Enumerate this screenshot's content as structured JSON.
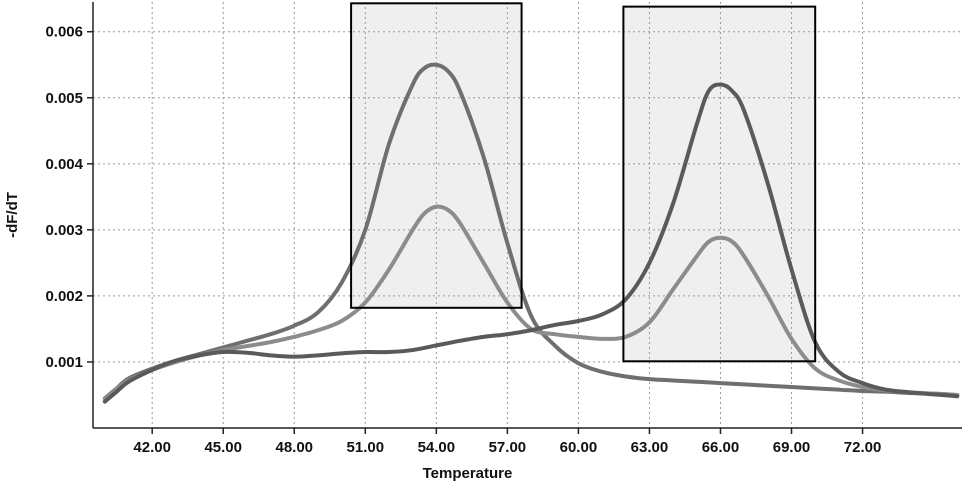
{
  "chart_data": {
    "type": "line",
    "title": "",
    "xlabel": "Temperature",
    "ylabel": "-dF/dT",
    "xlim": [
      39.5,
      76.2
    ],
    "ylim": [
      0.0,
      0.00645
    ],
    "x_ticks": [
      42,
      45,
      48,
      51,
      54,
      57,
      60,
      63,
      66,
      69,
      72
    ],
    "x_tick_labels": [
      "42.00",
      "45.00",
      "48.00",
      "51.00",
      "54.00",
      "57.00",
      "60.00",
      "63.00",
      "66.00",
      "69.00",
      "72.00"
    ],
    "y_ticks": [
      0.001,
      0.002,
      0.003,
      0.004,
      0.005,
      0.006
    ],
    "y_tick_labels": [
      "0.001",
      "0.002",
      "0.003",
      "0.004",
      "0.005",
      "0.006"
    ],
    "grid": true,
    "legend": "none",
    "series": [
      {
        "color": "#6f6f6f",
        "x": [
          40.0,
          40.5,
          41.0,
          42.0,
          43.0,
          44.0,
          45.0,
          46.0,
          47.0,
          48.0,
          49.0,
          50.0,
          51.0,
          52.0,
          53.0,
          53.5,
          54.0,
          54.5,
          55.0,
          56.0,
          57.0,
          58.0,
          59.0,
          60.0,
          61.0,
          62.0,
          63.0,
          64.0,
          65.0,
          66.0,
          67.0,
          68.0,
          69.0,
          70.0,
          71.0,
          72.0,
          73.0,
          74.0,
          75.0,
          76.0
        ],
        "y": [
          0.00045,
          0.0006,
          0.00075,
          0.0009,
          0.00102,
          0.00112,
          0.00122,
          0.00132,
          0.00142,
          0.00155,
          0.00175,
          0.0022,
          0.003,
          0.0043,
          0.0052,
          0.00545,
          0.0055,
          0.0054,
          0.0051,
          0.0041,
          0.0028,
          0.0017,
          0.00125,
          0.00098,
          0.00085,
          0.00078,
          0.00074,
          0.00072,
          0.0007,
          0.00068,
          0.00066,
          0.00064,
          0.00062,
          0.0006,
          0.00058,
          0.00056,
          0.00055,
          0.00053,
          0.00052,
          0.0005
        ]
      },
      {
        "color": "#8c8c8c",
        "x": [
          40.0,
          40.5,
          41.0,
          42.0,
          43.0,
          44.0,
          45.0,
          46.0,
          47.0,
          48.0,
          49.0,
          50.0,
          51.0,
          52.0,
          53.0,
          53.5,
          54.0,
          54.5,
          55.0,
          56.0,
          57.0,
          58.0,
          59.0,
          60.0,
          61.0,
          62.0,
          63.0,
          64.0,
          65.0,
          65.5,
          66.0,
          66.5,
          67.0,
          68.0,
          69.0,
          70.0,
          71.0,
          72.0,
          73.0,
          74.0,
          75.0,
          76.0
        ],
        "y": [
          0.00045,
          0.0006,
          0.00072,
          0.00088,
          0.001,
          0.0011,
          0.00118,
          0.00124,
          0.0013,
          0.00138,
          0.00148,
          0.00162,
          0.0019,
          0.0024,
          0.003,
          0.00325,
          0.00335,
          0.0033,
          0.0031,
          0.0025,
          0.0019,
          0.0015,
          0.00142,
          0.00138,
          0.00135,
          0.00138,
          0.0016,
          0.0021,
          0.0026,
          0.00282,
          0.00288,
          0.00282,
          0.0026,
          0.002,
          0.00135,
          0.0009,
          0.00072,
          0.00062,
          0.00057,
          0.00054,
          0.00052,
          0.0005
        ]
      },
      {
        "color": "#5a5a5a",
        "x": [
          40.0,
          40.5,
          41.0,
          42.0,
          43.0,
          44.0,
          45.0,
          46.0,
          47.0,
          48.0,
          49.0,
          50.0,
          51.0,
          52.0,
          53.0,
          54.0,
          55.0,
          56.0,
          57.0,
          58.0,
          59.0,
          60.0,
          61.0,
          62.0,
          63.0,
          64.0,
          65.0,
          65.5,
          66.0,
          66.5,
          67.0,
          68.0,
          69.0,
          70.0,
          71.0,
          72.0,
          73.0,
          74.0,
          75.0,
          76.0
        ],
        "y": [
          0.0004,
          0.00055,
          0.0007,
          0.00088,
          0.00102,
          0.0011,
          0.00115,
          0.00114,
          0.0011,
          0.00108,
          0.0011,
          0.00113,
          0.00115,
          0.00115,
          0.00118,
          0.00125,
          0.00132,
          0.00138,
          0.00142,
          0.00148,
          0.00156,
          0.00162,
          0.00172,
          0.00195,
          0.0025,
          0.0034,
          0.0046,
          0.0051,
          0.0052,
          0.0051,
          0.0048,
          0.0037,
          0.0024,
          0.0013,
          0.00085,
          0.00068,
          0.00058,
          0.00054,
          0.00051,
          0.00048
        ]
      }
    ],
    "highlight_regions": [
      {
        "x": [
          50.4,
          57.6
        ],
        "y": [
          0.00182,
          0.00643
        ],
        "fill": "#efefef",
        "stroke": "#000000"
      },
      {
        "x": [
          61.9,
          70.0
        ],
        "y": [
          0.00101,
          0.00638
        ],
        "fill": "#efefef",
        "stroke": "#000000"
      }
    ],
    "colors": {
      "grid": "#9a9a9a",
      "axis": "#222222",
      "region_fill": "#efefef",
      "region_stroke": "#000000"
    }
  }
}
